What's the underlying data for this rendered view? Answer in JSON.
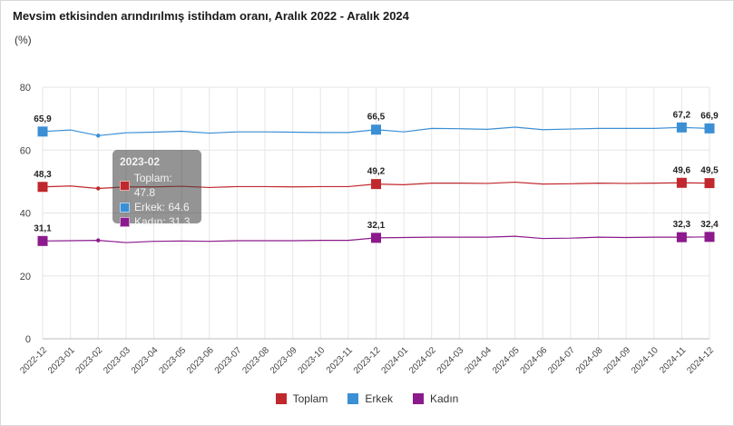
{
  "chart_data": {
    "type": "line",
    "title": "Mevsim etkisinden arındırılmış istihdam oranı, Aralık 2022 - Aralık 2024",
    "unit": "(%)",
    "ylim": [
      0,
      80
    ],
    "yticks": [
      0,
      20,
      40,
      60,
      80
    ],
    "grid": true,
    "legend_position": "bottom",
    "categories": [
      "2022-12",
      "2023-01",
      "2023-02",
      "2023-03",
      "2023-04",
      "2023-05",
      "2023-06",
      "2023-07",
      "2023-08",
      "2023-09",
      "2023-10",
      "2023-11",
      "2023-12",
      "2024-01",
      "2024-02",
      "2024-03",
      "2024-04",
      "2024-05",
      "2024-06",
      "2024-07",
      "2024-08",
      "2024-09",
      "2024-10",
      "2024-11",
      "2024-12"
    ],
    "series": [
      {
        "name": "Toplam",
        "color": "#c0282d",
        "values": [
          48.3,
          48.6,
          47.8,
          48.3,
          48.3,
          48.5,
          48.1,
          48.4,
          48.4,
          48.3,
          48.4,
          48.4,
          49.2,
          49.0,
          49.5,
          49.5,
          49.4,
          49.8,
          49.2,
          49.3,
          49.5,
          49.4,
          49.5,
          49.6,
          49.5
        ]
      },
      {
        "name": "Erkek",
        "color": "#3b8fd4",
        "values": [
          65.9,
          66.4,
          64.6,
          65.5,
          65.7,
          66.0,
          65.4,
          65.8,
          65.8,
          65.7,
          65.6,
          65.6,
          66.5,
          65.8,
          66.9,
          66.8,
          66.6,
          67.3,
          66.5,
          66.7,
          66.9,
          66.9,
          66.9,
          67.2,
          66.9
        ]
      },
      {
        "name": "Kadın",
        "color": "#8c1a8c",
        "values": [
          31.1,
          31.2,
          31.3,
          30.6,
          31.0,
          31.1,
          31.0,
          31.2,
          31.2,
          31.2,
          31.3,
          31.3,
          32.1,
          32.2,
          32.3,
          32.3,
          32.3,
          32.6,
          31.9,
          32.0,
          32.3,
          32.2,
          32.3,
          32.3,
          32.4
        ]
      }
    ],
    "data_labels": [
      {
        "series": 1,
        "index": 0,
        "text": "65,9"
      },
      {
        "series": 0,
        "index": 0,
        "text": "48,3"
      },
      {
        "series": 2,
        "index": 0,
        "text": "31,1"
      },
      {
        "series": 1,
        "index": 12,
        "text": "66,5"
      },
      {
        "series": 0,
        "index": 12,
        "text": "49,2"
      },
      {
        "series": 2,
        "index": 12,
        "text": "32,1"
      },
      {
        "series": 1,
        "index": 23,
        "text": "67,2"
      },
      {
        "series": 0,
        "index": 23,
        "text": "49,6"
      },
      {
        "series": 2,
        "index": 23,
        "text": "32,3"
      },
      {
        "series": 1,
        "index": 24,
        "text": "66,9"
      },
      {
        "series": 0,
        "index": 24,
        "text": "49,5"
      },
      {
        "series": 2,
        "index": 24,
        "text": "32,4"
      }
    ],
    "tooltip": {
      "index": 2,
      "title": "2023-02",
      "rows": [
        "Toplam: 47.8",
        "Erkek: 64.6",
        "Kadın: 31.3"
      ]
    }
  }
}
